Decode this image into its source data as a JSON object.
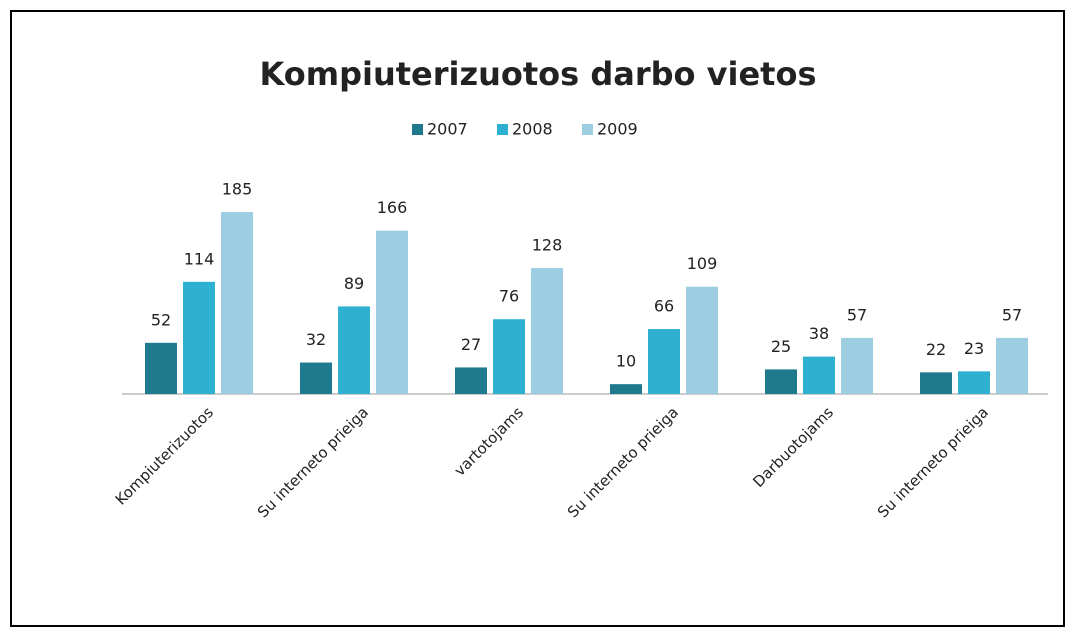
{
  "chart_data": {
    "type": "bar",
    "title": "Kompiuterizuotos darbo vietos",
    "categories": [
      "Kompiuterizuotos",
      "Su interneto prieiga",
      "vartotojams",
      "Su interneto prieiga",
      "Darbuotojams",
      "Su interneto prieiga"
    ],
    "series": [
      {
        "name": "2007",
        "color": "#1f7a8e",
        "values": [
          52,
          32,
          27,
          10,
          25,
          22
        ]
      },
      {
        "name": "2008",
        "color": "#2eb0d1",
        "values": [
          114,
          89,
          76,
          66,
          38,
          23
        ]
      },
      {
        "name": "2009",
        "color": "#9dcde0",
        "values": [
          185,
          166,
          128,
          109,
          57,
          57
        ]
      }
    ],
    "legend": "top"
  }
}
